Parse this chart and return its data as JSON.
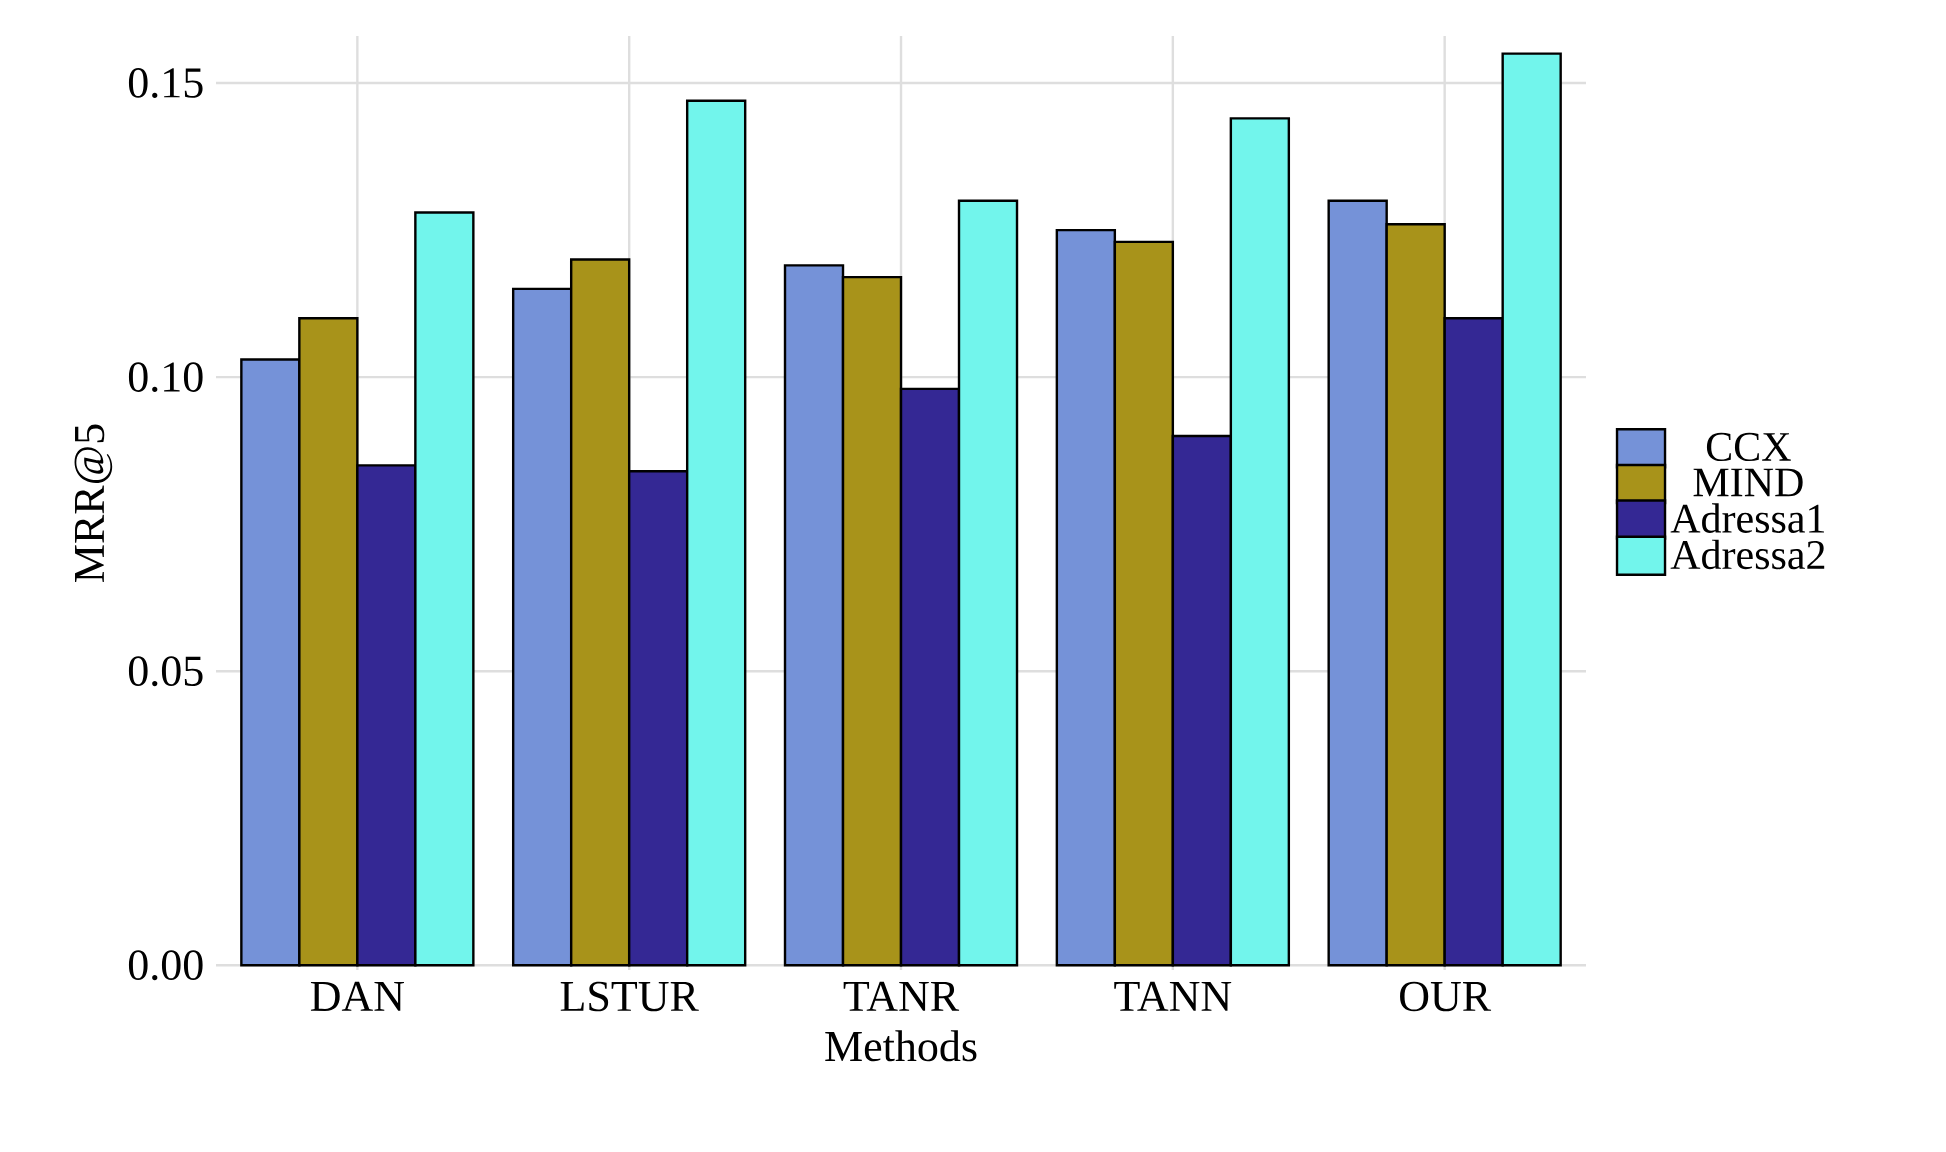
{
  "chart_data": {
    "type": "bar",
    "xlabel": "Methods",
    "ylabel": "MRR@5",
    "categories": [
      "DAN",
      "LSTUR",
      "TANR",
      "TANN",
      "OUR"
    ],
    "series": [
      {
        "name": "CCX",
        "color": "#7592d8",
        "values": [
          0.103,
          0.115,
          0.119,
          0.125,
          0.13
        ]
      },
      {
        "name": "MIND",
        "color": "#a8931a",
        "values": [
          0.11,
          0.12,
          0.117,
          0.123,
          0.126
        ]
      },
      {
        "name": "Adressa1",
        "color": "#342894",
        "values": [
          0.085,
          0.084,
          0.098,
          0.09,
          0.11
        ]
      },
      {
        "name": "Adressa2",
        "color": "#72f5ec",
        "values": [
          0.128,
          0.147,
          0.13,
          0.144,
          0.155
        ]
      }
    ],
    "ylim": [
      -0.0008,
      0.158
    ],
    "yticks": [
      {
        "value": 0,
        "label": "0.00"
      },
      {
        "value": 0.05,
        "label": "0.05"
      },
      {
        "value": 0.1,
        "label": "0.10"
      },
      {
        "value": 0.15,
        "label": "0.15"
      }
    ],
    "grid": true,
    "legend": "right"
  }
}
